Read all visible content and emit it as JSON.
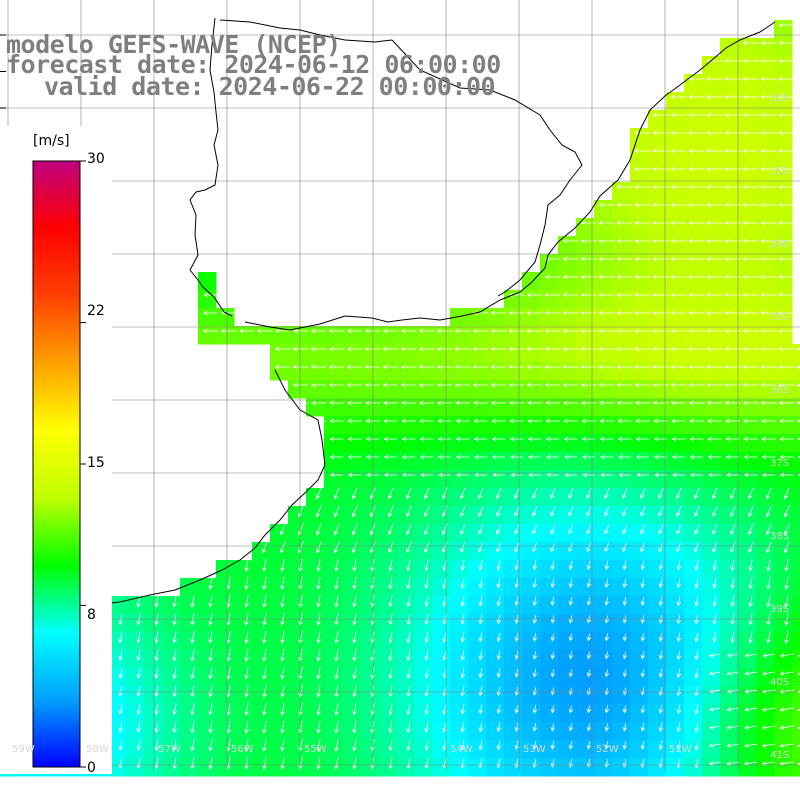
{
  "title": {
    "line1": "modelo GEFS-WAVE (NCEP)",
    "line2": "forecast date: 2024-06-12 06:00:00",
    "line3": "valid date: 2024-06-22 00:00:00"
  },
  "colorbar": {
    "unit": "[m/s]",
    "ticks": [
      "30",
      "22",
      "15",
      "8",
      "0"
    ],
    "tick_values": [
      30,
      22,
      15,
      8,
      0
    ],
    "range": [
      0,
      30
    ],
    "colors": [
      "#0000ff",
      "#00a0ff",
      "#00ffff",
      "#00ff00",
      "#c0ff00",
      "#ffff00",
      "#ffa000",
      "#ff4000",
      "#ff0000",
      "#c00080"
    ]
  },
  "axes": {
    "lat_labels": [
      "32S",
      "33S",
      "34S",
      "35S",
      "36S",
      "37S",
      "38S",
      "39S",
      "40S",
      "41S"
    ],
    "lon_labels": [
      "59W",
      "58W",
      "57W",
      "56W",
      "55W",
      "54W",
      "53W",
      "52W",
      "51W"
    ]
  },
  "layers": {
    "land_color": "#ffffff",
    "coast_color": "#000000",
    "grid_color": "#808080",
    "arrow_color": "#ffffff"
  }
}
